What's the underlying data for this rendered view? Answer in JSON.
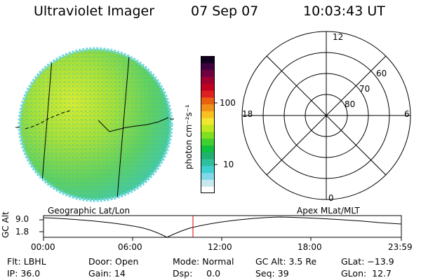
{
  "header": {
    "instrument": "Ultraviolet Imager",
    "date": "07 Sep 07",
    "time": "10:03:43 UT"
  },
  "colorbar": {
    "unit_label": "photon cm⁻²s⁻¹",
    "tick_100": "100",
    "tick_10": "10",
    "colors": [
      "#ffffff",
      "#c8e8f0",
      "#80d8e8",
      "#40d0d0",
      "#30c0a0",
      "#20b070",
      "#10c040",
      "#40d030",
      "#80e020",
      "#c0e820",
      "#f0e830",
      "#f8c020",
      "#f09018",
      "#e86010",
      "#e02020",
      "#c00020",
      "#a00030",
      "#700040",
      "#400040",
      "#100020"
    ]
  },
  "polar": {
    "labels": {
      "top": "12",
      "left": "18",
      "right": "6",
      "bottom": "0"
    },
    "rings": [
      "60",
      "70",
      "80"
    ]
  },
  "altitude_panel": {
    "left_title": "Geographic Lat/Lon",
    "right_title": "Apex  MLat/MLT",
    "axis_label": "GC Alt",
    "y_top": "9.0",
    "y_bottom": "1.8",
    "x_ticks": [
      "00:00",
      "06:00",
      "12:00",
      "18:00",
      "23:59"
    ]
  },
  "status": {
    "flt": "Flt: LBHL",
    "ip": "IP: 36.0",
    "door": "Door: Open",
    "gain": "Gain: 14",
    "mode": "Mode: Normal",
    "dsp": "Dsp:     0.0",
    "gc_alt": "GC Alt: 3.5 Re",
    "seq": "Seq: 39",
    "glat": "GLat: −13.9",
    "glon": "GLon:  12.7"
  }
}
